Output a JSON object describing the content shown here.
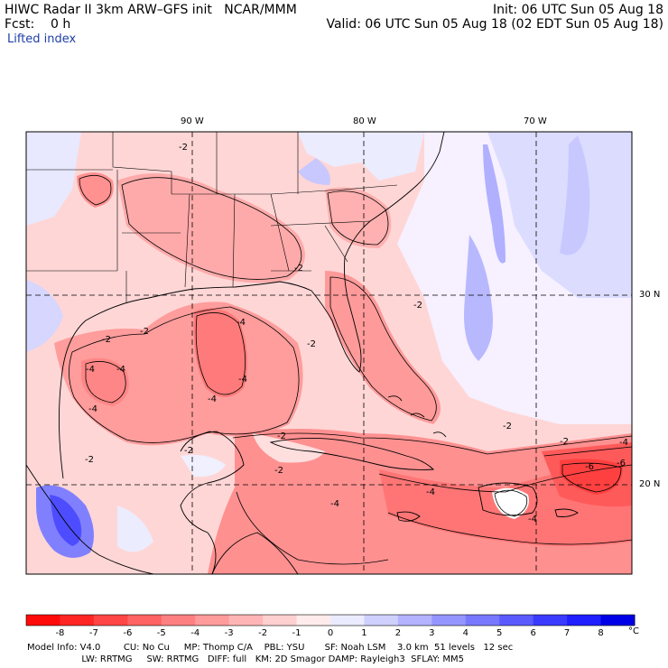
{
  "header": {
    "title": "HIWC Radar II 3km ARW–GFS init   NCAR/MMM",
    "fcst": "Fcst:    0 h",
    "field": "Lifted index",
    "init": "Init: 06 UTC Sun 05 Aug 18",
    "valid": "Valid: 06 UTC Sun 05 Aug 18 (02 EDT Sun 05 Aug 18)"
  },
  "map": {
    "lon_labels": [
      "90 W",
      "80 W",
      "70 W"
    ],
    "lat_labels": [
      "30 N",
      "20 N"
    ],
    "contour_labels": [
      "-2",
      "-4",
      "-6"
    ]
  },
  "colorbar": {
    "values": [
      "-8",
      "-7",
      "-6",
      "-5",
      "-4",
      "-3",
      "-2",
      "-1",
      "0",
      "1",
      "2",
      "3",
      "4",
      "5",
      "6",
      "7",
      "8"
    ],
    "unit": "°C",
    "colors": [
      "#ff0a0a",
      "#ff2525",
      "#ff4545",
      "#ff6363",
      "#ff8080",
      "#ff9b9b",
      "#ffb5b5",
      "#ffd0d0",
      "#ffebeb",
      "#ebebff",
      "#d0d0ff",
      "#b3b3ff",
      "#9595ff",
      "#7878ff",
      "#5a5aff",
      "#3b3bff",
      "#1f1fff",
      "#0000e6"
    ]
  },
  "footer": {
    "line1": "Model Info: V4.0        CU: No Cu     MP: Thomp C/A    PBL: YSU       SF: Noah LSM    3.0 km  51 levels   12 sec",
    "line2": "                   LW: RRTMG     SW: RRTMG   DIFF: full   KM: 2D Smagor DAMP: Rayleigh3  SFLAY: MM5"
  }
}
